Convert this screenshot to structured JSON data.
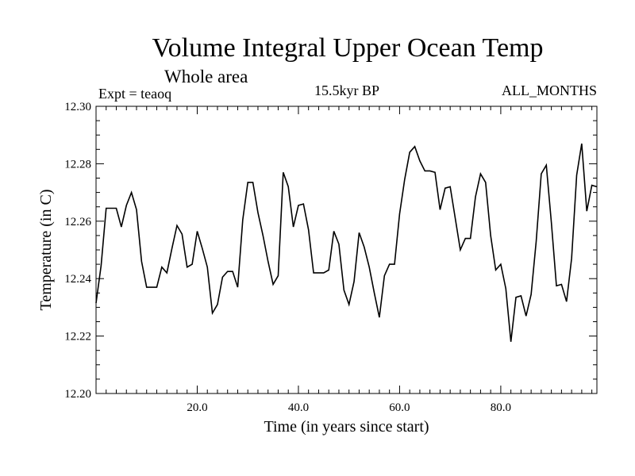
{
  "header": {
    "title": "Volume Integral Upper Ocean Temp",
    "subtitle": "Whole area",
    "expt": "Expt = teaoq",
    "period": "15.5kyr BP",
    "months": "ALL_MONTHS"
  },
  "chart_data": {
    "type": "line",
    "title": "Volume Integral Upper Ocean Temp",
    "xlabel": "Time (in years since start)",
    "ylabel": "Temperature (in C)",
    "xlim": [
      0,
      99
    ],
    "ylim": [
      12.2,
      12.3
    ],
    "x_ticks": [
      20,
      40,
      60,
      80
    ],
    "x_tick_labels": [
      "20.0",
      "40.0",
      "60.0",
      "80.0"
    ],
    "y_ticks": [
      12.2,
      12.22,
      12.24,
      12.26,
      12.28,
      12.3
    ],
    "y_tick_labels": [
      "12.20",
      "12.22",
      "12.24",
      "12.26",
      "12.28",
      "12.30"
    ],
    "grid": false,
    "color": "#000000",
    "series": [
      {
        "name": "teaoq",
        "x": [
          0,
          1,
          2,
          3,
          4,
          5,
          6,
          7,
          8,
          9,
          10,
          11,
          12,
          13,
          14,
          15,
          16,
          17,
          18,
          19,
          20,
          21,
          22,
          23,
          24,
          25,
          26,
          27,
          28,
          29,
          30,
          31,
          32,
          33,
          34,
          35,
          36,
          37,
          38,
          39,
          40,
          41,
          42,
          43,
          44,
          45,
          46,
          47,
          48,
          49,
          50,
          51,
          52,
          53,
          54,
          55,
          56,
          57,
          58,
          59,
          60,
          61,
          62,
          63,
          64,
          65,
          66,
          67,
          68,
          69,
          70,
          71,
          72,
          73,
          74,
          75,
          76,
          77,
          78,
          79,
          80,
          81,
          82,
          83,
          84,
          85,
          86,
          87,
          88,
          89,
          90,
          91,
          92,
          93,
          94,
          95,
          96,
          97,
          98,
          99
        ],
        "values": [
          12.2315,
          12.2445,
          12.2645,
          12.2645,
          12.2645,
          12.258,
          12.2655,
          12.27,
          12.264,
          12.246,
          12.237,
          12.237,
          12.237,
          12.244,
          12.242,
          12.2505,
          12.2585,
          12.2555,
          12.244,
          12.245,
          12.2565,
          12.2505,
          12.244,
          12.228,
          12.231,
          12.2405,
          12.2425,
          12.2425,
          12.237,
          12.2605,
          12.2735,
          12.2735,
          12.263,
          12.255,
          12.246,
          12.238,
          12.241,
          12.277,
          12.272,
          12.258,
          12.2655,
          12.266,
          12.257,
          12.242,
          12.242,
          12.242,
          12.243,
          12.2565,
          12.252,
          12.236,
          12.231,
          12.239,
          12.256,
          12.251,
          12.244,
          12.235,
          12.2265,
          12.241,
          12.245,
          12.245,
          12.2625,
          12.2745,
          12.284,
          12.286,
          12.281,
          12.2775,
          12.2775,
          12.277,
          12.264,
          12.2715,
          12.272,
          12.261,
          12.25,
          12.254,
          12.254,
          12.2685,
          12.2765,
          12.2735,
          12.255,
          12.243,
          12.245,
          12.2365,
          12.218,
          12.2335,
          12.234,
          12.227,
          12.2345,
          12.253,
          12.2765,
          12.2795,
          12.2595,
          12.2375,
          12.238,
          12.232,
          12.247,
          12.276,
          12.287,
          12.2635,
          12.2725,
          12.272
        ]
      }
    ]
  }
}
